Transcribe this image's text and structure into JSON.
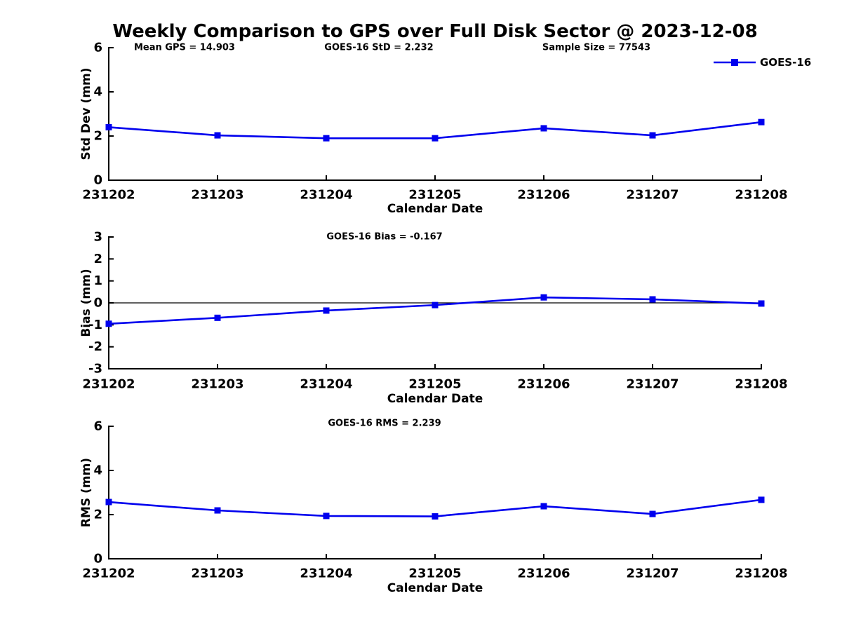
{
  "title": "Weekly Comparison to GPS over Full Disk Sector @ 2023-12-08",
  "legend": {
    "label": "GOES-16",
    "position": "top-right",
    "frame": false
  },
  "colors": {
    "line": "#0000EE",
    "marker": "#0000EE",
    "axis": "#000000",
    "text": "#000000",
    "background": "#FFFFFF"
  },
  "chart_data": [
    {
      "id": "stddev",
      "type": "line",
      "annotations": [
        "Mean GPS = 14.903",
        "GOES-16 StD = 2.232",
        "Sample Size = 77543"
      ],
      "categories": [
        "231202",
        "231203",
        "231204",
        "231205",
        "231206",
        "231207",
        "231208"
      ],
      "series": [
        {
          "name": "GOES-16",
          "values": [
            2.4,
            2.03,
            1.9,
            1.9,
            2.35,
            2.03,
            2.63
          ]
        }
      ],
      "xlabel": "Calendar Date",
      "ylabel": "Std Dev (mm)",
      "ylim": [
        0,
        6
      ],
      "yticks": [
        0,
        2,
        4,
        6
      ],
      "zero_line": false,
      "grid": false,
      "show_legend": true
    },
    {
      "id": "bias",
      "type": "line",
      "annotations": [
        "GOES-16 Bias  = -0.167"
      ],
      "categories": [
        "231202",
        "231203",
        "231204",
        "231205",
        "231206",
        "231207",
        "231208"
      ],
      "series": [
        {
          "name": "GOES-16",
          "values": [
            -0.95,
            -0.68,
            -0.35,
            -0.1,
            0.25,
            0.16,
            -0.03
          ]
        }
      ],
      "xlabel": "Calendar Date",
      "ylabel": "Bias (mm)",
      "ylim": [
        -3,
        3
      ],
      "yticks": [
        -3,
        -2,
        -1,
        0,
        1,
        2,
        3
      ],
      "zero_line": true,
      "grid": false,
      "show_legend": false
    },
    {
      "id": "rms",
      "type": "line",
      "annotations": [
        "GOES-16 RMS = 2.239"
      ],
      "categories": [
        "231202",
        "231203",
        "231204",
        "231205",
        "231206",
        "231207",
        "231208"
      ],
      "series": [
        {
          "name": "GOES-16",
          "values": [
            2.57,
            2.19,
            1.94,
            1.92,
            2.38,
            2.03,
            2.67
          ]
        }
      ],
      "xlabel": "Calendar Date",
      "ylabel": "RMS (mm)",
      "ylim": [
        0,
        6
      ],
      "yticks": [
        0,
        2,
        4,
        6
      ],
      "zero_line": false,
      "grid": false,
      "show_legend": false
    }
  ]
}
